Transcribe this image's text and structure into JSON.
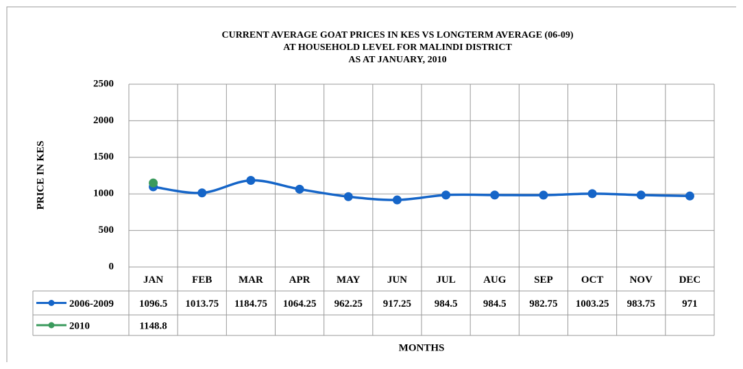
{
  "chart_data": {
    "type": "line",
    "title": [
      "CURRENT AVERAGE GOAT PRICES IN KES VS LONGTERM AVERAGE (06-09)",
      "AT HOUSEHOLD LEVEL FOR MALINDI DISTRICT",
      "AS AT JANUARY,  2010"
    ],
    "y_label": "PRICE IN KES",
    "x_label": "MONTHS",
    "categories": [
      "JAN",
      "FEB",
      "MAR",
      "APR",
      "MAY",
      "JUN",
      "JUL",
      "AUG",
      "SEP",
      "OCT",
      "NOV",
      "DEC"
    ],
    "series": [
      {
        "name": "2006-2009",
        "color": "#1565c8",
        "values": [
          1096.5,
          1013.75,
          1184.75,
          1064.25,
          962.25,
          917.25,
          984.5,
          984.5,
          982.75,
          1003.25,
          983.75,
          971
        ]
      },
      {
        "name": "2010",
        "color": "#3a9a5c",
        "values": [
          1148.8,
          null,
          null,
          null,
          null,
          null,
          null,
          null,
          null,
          null,
          null,
          null
        ]
      }
    ],
    "ylim": [
      0,
      2500
    ],
    "yticks": [
      0,
      500,
      1000,
      1500,
      2000,
      2500
    ],
    "grid": true,
    "smooth": true
  }
}
